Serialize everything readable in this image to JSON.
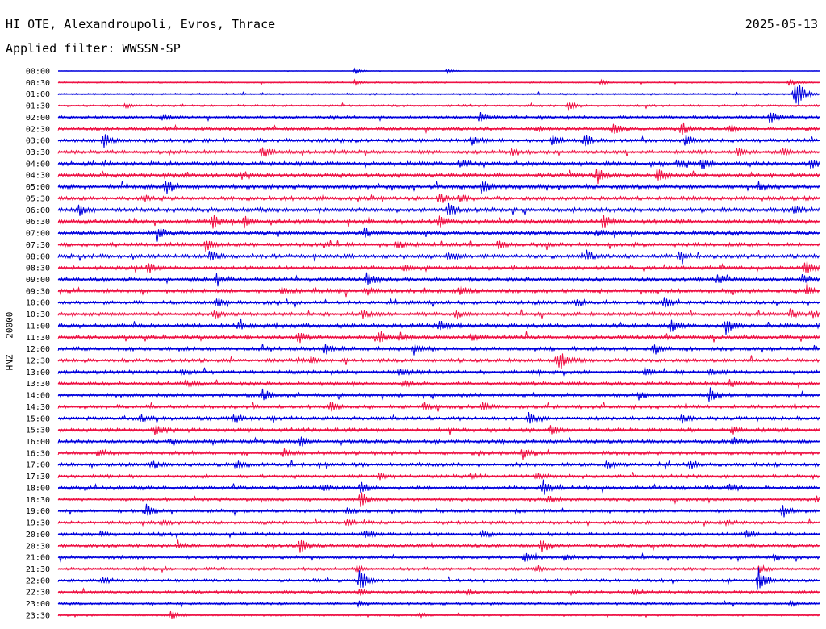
{
  "header": {
    "station": "HI OTE, Alexandroupoli, Evros, Thrace",
    "date": "2025-05-13",
    "filter": "Applied filter: WWSSN-SP"
  },
  "colors": {
    "odd_trace": "#0000dd",
    "even_trace": "#ee1144"
  },
  "chart_data": {
    "type": "line",
    "subtype": "helicorder",
    "ylabel": "HNZ - 20000",
    "row_labels": [
      "00:00",
      "00:30",
      "01:00",
      "01:30",
      "02:00",
      "02:30",
      "03:00",
      "03:30",
      "04:00",
      "04:30",
      "05:00",
      "05:30",
      "06:00",
      "06:30",
      "07:00",
      "07:30",
      "08:00",
      "08:30",
      "09:00",
      "09:30",
      "10:00",
      "10:30",
      "11:00",
      "11:30",
      "12:00",
      "12:30",
      "13:00",
      "13:30",
      "14:00",
      "14:30",
      "15:00",
      "15:30",
      "16:00",
      "16:30",
      "17:00",
      "17:30",
      "18:00",
      "18:30",
      "19:00",
      "19:30",
      "20:00",
      "20:30",
      "21:00",
      "21:30",
      "22:00",
      "22:30",
      "23:00",
      "23:30"
    ],
    "row_minutes": 30,
    "trace_colors": [
      "#0000dd",
      "#ee1144"
    ],
    "noise_level": [
      0.2,
      0.8,
      1.0,
      1.2,
      1.5,
      1.8,
      2.0,
      2.0,
      2.2,
      2.2,
      2.4,
      2.2,
      2.4,
      2.4,
      2.2,
      2.2,
      2.2,
      2.0,
      2.2,
      2.2,
      2.0,
      2.0,
      2.2,
      2.2,
      2.2,
      2.0,
      2.0,
      2.0,
      2.0,
      2.0,
      2.0,
      2.0,
      2.0,
      2.0,
      2.0,
      1.8,
      2.0,
      1.8,
      1.8,
      1.8,
      1.8,
      1.8,
      1.8,
      1.6,
      1.6,
      1.5,
      1.4,
      1.2
    ],
    "events": [
      [
        [
          440,
          4
        ],
        [
          555,
          3
        ]
      ],
      [
        [
          440,
          3
        ],
        [
          745,
          3
        ],
        [
          978,
          4
        ]
      ],
      [
        [
          985,
          16
        ],
        [
          990,
          8
        ]
      ],
      [
        [
          705,
          6
        ],
        [
          155,
          3
        ]
      ],
      [
        [
          595,
          7
        ],
        [
          955,
          9
        ],
        [
          200,
          4
        ]
      ],
      [
        [
          760,
          8
        ],
        [
          845,
          10
        ],
        [
          905,
          6
        ],
        [
          665,
          4
        ]
      ],
      [
        [
          128,
          8
        ],
        [
          585,
          6
        ],
        [
          685,
          8
        ],
        [
          725,
          9
        ],
        [
          850,
          7
        ]
      ],
      [
        [
          325,
          8
        ],
        [
          635,
          5
        ],
        [
          915,
          6
        ],
        [
          970,
          5
        ]
      ],
      [
        [
          570,
          5
        ],
        [
          870,
          7
        ],
        [
          1005,
          6
        ],
        [
          840,
          4
        ]
      ],
      [
        [
          740,
          12
        ],
        [
          815,
          9
        ],
        [
          300,
          4
        ]
      ],
      [
        [
          205,
          10
        ],
        [
          598,
          10
        ],
        [
          940,
          6
        ]
      ],
      [
        [
          545,
          6
        ],
        [
          570,
          4
        ],
        [
          180,
          3
        ]
      ],
      [
        [
          98,
          6
        ],
        [
          555,
          10
        ],
        [
          985,
          6
        ]
      ],
      [
        [
          263,
          9
        ],
        [
          303,
          7
        ],
        [
          545,
          9
        ],
        [
          748,
          10
        ]
      ],
      [
        [
          195,
          9
        ],
        [
          452,
          6
        ],
        [
          740,
          5
        ]
      ],
      [
        [
          255,
          9
        ],
        [
          492,
          5
        ],
        [
          618,
          6
        ]
      ],
      [
        [
          260,
          7
        ],
        [
          555,
          5
        ],
        [
          727,
          7
        ],
        [
          842,
          6
        ]
      ],
      [
        [
          183,
          7
        ],
        [
          998,
          10
        ],
        [
          500,
          4
        ]
      ],
      [
        [
          268,
          7
        ],
        [
          455,
          9
        ],
        [
          890,
          7
        ],
        [
          995,
          6
        ]
      ],
      [
        [
          350,
          4
        ],
        [
          570,
          7
        ],
        [
          1000,
          5
        ],
        [
          455,
          4
        ]
      ],
      [
        [
          268,
          7
        ],
        [
          715,
          5
        ],
        [
          823,
          7
        ]
      ],
      [
        [
          265,
          6
        ],
        [
          450,
          5
        ],
        [
          565,
          4
        ],
        [
          980,
          6
        ],
        [
          1008,
          4
        ]
      ],
      [
        [
          545,
          8
        ],
        [
          833,
          7
        ],
        [
          900,
          11
        ],
        [
          295,
          4
        ]
      ],
      [
        [
          370,
          7
        ],
        [
          470,
          8
        ],
        [
          495,
          5
        ],
        [
          585,
          5
        ]
      ],
      [
        [
          402,
          7
        ],
        [
          810,
          7
        ],
        [
          512,
          5
        ]
      ],
      [
        [
          385,
          5
        ],
        [
          695,
          9
        ],
        [
          690,
          6
        ]
      ],
      [
        [
          495,
          6
        ],
        [
          800,
          6
        ],
        [
          880,
          5
        ],
        [
          225,
          3
        ]
      ],
      [
        [
          230,
          4
        ],
        [
          500,
          4
        ],
        [
          905,
          4
        ]
      ],
      [
        [
          326,
          9
        ],
        [
          792,
          7
        ],
        [
          880,
          10
        ]
      ],
      [
        [
          410,
          6
        ],
        [
          525,
          5
        ],
        [
          598,
          5
        ]
      ],
      [
        [
          290,
          6
        ],
        [
          655,
          8
        ],
        [
          845,
          5
        ],
        [
          175,
          4
        ]
      ],
      [
        [
          192,
          7
        ],
        [
          683,
          7
        ],
        [
          908,
          6
        ]
      ],
      [
        [
          212,
          4
        ],
        [
          372,
          7
        ],
        [
          908,
          5
        ]
      ],
      [
        [
          122,
          5
        ],
        [
          352,
          5
        ],
        [
          648,
          7
        ]
      ],
      [
        [
          188,
          5
        ],
        [
          293,
          6
        ],
        [
          855,
          5
        ],
        [
          752,
          4
        ]
      ],
      [
        [
          470,
          4
        ],
        [
          585,
          3
        ],
        [
          665,
          4
        ]
      ],
      [
        [
          400,
          5
        ],
        [
          447,
          8
        ],
        [
          673,
          9
        ],
        [
          903,
          5
        ]
      ],
      [
        [
          447,
          10
        ],
        [
          680,
          5
        ],
        [
          1012,
          6
        ]
      ],
      [
        [
          182,
          9
        ],
        [
          430,
          4
        ],
        [
          970,
          8
        ]
      ],
      [
        [
          200,
          3
        ],
        [
          430,
          4
        ],
        [
          900,
          3
        ]
      ],
      [
        [
          125,
          3
        ],
        [
          453,
          5
        ],
        [
          598,
          4
        ],
        [
          925,
          5
        ]
      ],
      [
        [
          372,
          10
        ],
        [
          671,
          9
        ],
        [
          220,
          3
        ]
      ],
      [
        [
          650,
          7
        ],
        [
          700,
          5
        ],
        [
          960,
          4
        ]
      ],
      [
        [
          442,
          4
        ],
        [
          665,
          4
        ],
        [
          942,
          5
        ]
      ],
      [
        [
          127,
          5
        ],
        [
          446,
          15
        ],
        [
          940,
          17
        ]
      ],
      [
        [
          445,
          4
        ],
        [
          785,
          4
        ],
        [
          580,
          3
        ]
      ],
      [
        [
          445,
          3
        ],
        [
          980,
          3
        ]
      ],
      [
        [
          212,
          5
        ],
        [
          520,
          2
        ]
      ]
    ]
  }
}
